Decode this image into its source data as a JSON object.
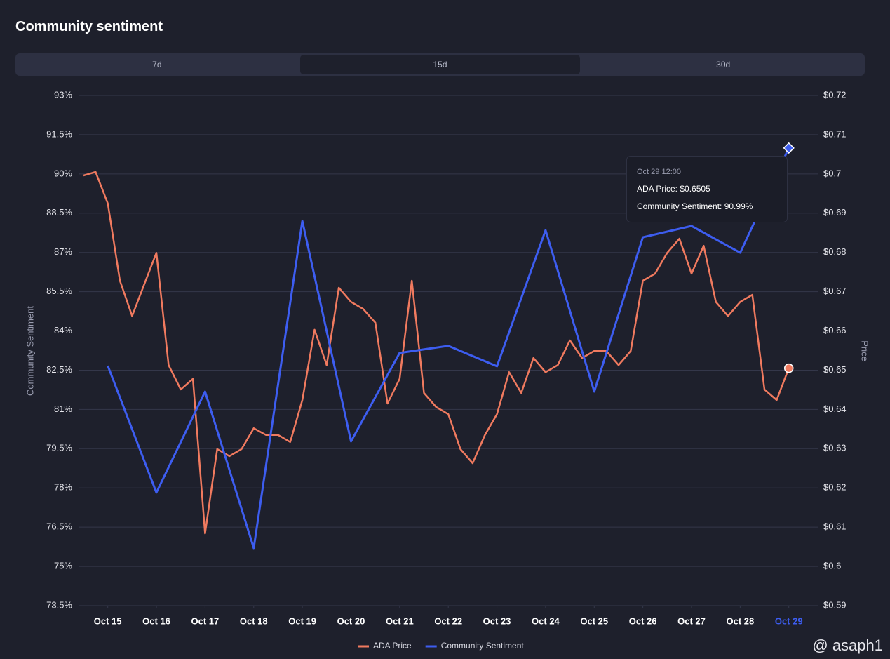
{
  "title": "Community sentiment",
  "tabs": [
    "7d",
    "15d",
    "30d"
  ],
  "active_tab": 1,
  "watermark": "@ asaph1",
  "chart_data": {
    "type": "line",
    "y_label": "Community Sentiment",
    "y2_label": "Price",
    "xlim": [
      -0.5,
      14.5
    ],
    "xticks": [
      {
        "value": 0,
        "label": "Oct 15"
      },
      {
        "value": 1,
        "label": "Oct 16"
      },
      {
        "value": 2,
        "label": "Oct 17"
      },
      {
        "value": 3,
        "label": "Oct 18"
      },
      {
        "value": 4,
        "label": "Oct 19"
      },
      {
        "value": 5,
        "label": "Oct 20"
      },
      {
        "value": 6,
        "label": "Oct 21"
      },
      {
        "value": 7,
        "label": "Oct 22"
      },
      {
        "value": 8,
        "label": "Oct 23"
      },
      {
        "value": 9,
        "label": "Oct 24"
      },
      {
        "value": 10,
        "label": "Oct 25"
      },
      {
        "value": 11,
        "label": "Oct 26"
      },
      {
        "value": 12,
        "label": "Oct 27"
      },
      {
        "value": 13,
        "label": "Oct 28"
      },
      {
        "value": 14,
        "label": "Oct 29"
      }
    ],
    "ylim": [
      73.5,
      93
    ],
    "yticks": [
      {
        "value": 73.5,
        "label": "73.5%"
      },
      {
        "value": 75,
        "label": "75%"
      },
      {
        "value": 76.5,
        "label": "76.5%"
      },
      {
        "value": 78,
        "label": "78%"
      },
      {
        "value": 79.5,
        "label": "79.5%"
      },
      {
        "value": 81,
        "label": "81%"
      },
      {
        "value": 82.5,
        "label": "82.5%"
      },
      {
        "value": 84,
        "label": "84%"
      },
      {
        "value": 85.5,
        "label": "85.5%"
      },
      {
        "value": 87,
        "label": "87%"
      },
      {
        "value": 88.5,
        "label": "88.5%"
      },
      {
        "value": 90,
        "label": "90%"
      },
      {
        "value": 91.5,
        "label": "91.5%"
      },
      {
        "value": 93,
        "label": "93%"
      }
    ],
    "y2lim": [
      0.59,
      0.72
    ],
    "y2ticks": [
      {
        "value": 0.59,
        "label": "$0.59"
      },
      {
        "value": 0.6,
        "label": "$0.6"
      },
      {
        "value": 0.61,
        "label": "$0.61"
      },
      {
        "value": 0.62,
        "label": "$0.62"
      },
      {
        "value": 0.63,
        "label": "$0.63"
      },
      {
        "value": 0.64,
        "label": "$0.64"
      },
      {
        "value": 0.65,
        "label": "$0.65"
      },
      {
        "value": 0.66,
        "label": "$0.66"
      },
      {
        "value": 0.67,
        "label": "$0.67"
      },
      {
        "value": 0.68,
        "label": "$0.68"
      },
      {
        "value": 0.69,
        "label": "$0.69"
      },
      {
        "value": 0.7,
        "label": "$0.7"
      },
      {
        "value": 0.71,
        "label": "$0.71"
      },
      {
        "value": 0.72,
        "label": "$0.72"
      }
    ],
    "grid": true,
    "series": [
      {
        "name": "ADA Price",
        "color": "#f07a5f",
        "axis": "y2",
        "x": [
          -0.5,
          -0.25,
          0,
          0.25,
          0.5,
          0.75,
          1,
          1.25,
          1.5,
          1.75,
          2,
          2.25,
          2.5,
          2.75,
          3,
          3.25,
          3.5,
          3.75,
          4,
          4.25,
          4.5,
          4.75,
          5,
          5.25,
          5.5,
          5.75,
          6,
          6.25,
          6.5,
          6.75,
          7,
          7.25,
          7.5,
          7.75,
          8,
          8.25,
          8.5,
          8.75,
          9,
          9.25,
          9.5,
          9.75,
          10,
          10.25,
          10.5,
          10.75,
          11,
          11.25,
          11.5,
          11.75,
          12,
          12.25,
          12.5,
          12.75,
          13,
          13.25,
          13.5,
          13.75,
          14
        ],
        "values": [
          0.6996,
          0.7005,
          0.6925,
          0.6728,
          0.6638,
          0.6719,
          0.6799,
          0.6513,
          0.6451,
          0.6478,
          0.6084,
          0.6299,
          0.6281,
          0.6299,
          0.6352,
          0.6335,
          0.6335,
          0.6317,
          0.6424,
          0.6603,
          0.6513,
          0.671,
          0.6674,
          0.6656,
          0.6621,
          0.6415,
          0.6478,
          0.6728,
          0.6442,
          0.6406,
          0.6388,
          0.6299,
          0.6263,
          0.6334,
          0.6388,
          0.6495,
          0.6442,
          0.6531,
          0.6495,
          0.6513,
          0.6576,
          0.6531,
          0.6549,
          0.6549,
          0.6513,
          0.6549,
          0.6728,
          0.6746,
          0.6799,
          0.6835,
          0.6746,
          0.6817,
          0.6674,
          0.6638,
          0.6674,
          0.6692,
          0.6451,
          0.6424,
          0.6505
        ]
      },
      {
        "name": "Community Sentiment",
        "color": "#3d5df0",
        "x": [
          0,
          1,
          2,
          3,
          4,
          5,
          6,
          7,
          8,
          9,
          10,
          11,
          12,
          13,
          14
        ],
        "values": [
          82.67,
          77.82,
          81.68,
          75.7,
          88.2,
          79.78,
          83.16,
          83.43,
          82.65,
          87.85,
          81.68,
          87.58,
          88.01,
          86.99,
          90.99
        ]
      }
    ],
    "legend": "bottom",
    "tooltip": {
      "x": 14,
      "title": "Oct 29 12:00",
      "lines": [
        "ADA Price: $0.6505",
        "Community Sentiment: 90.99%"
      ]
    }
  }
}
